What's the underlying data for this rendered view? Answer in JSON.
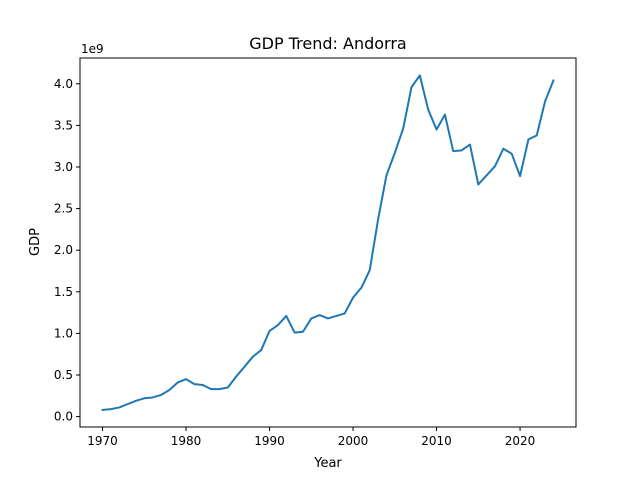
{
  "chart_data": {
    "type": "line",
    "title": "GDP Trend: Andorra",
    "xlabel": "Year",
    "ylabel": "GDP",
    "y_scale_label": "1e9",
    "xlim": [
      1967.3,
      2026.7
    ],
    "ylim": [
      -0.125,
      4.31
    ],
    "x_ticks": [
      1970,
      1980,
      1990,
      2000,
      2010,
      2020
    ],
    "y_ticks": [
      0.0,
      0.5,
      1.0,
      1.5,
      2.0,
      2.5,
      3.0,
      3.5,
      4.0
    ],
    "x_tick_labels": [
      "1970",
      "1980",
      "1990",
      "2000",
      "2010",
      "2020"
    ],
    "y_tick_labels": [
      "0.0",
      "0.5",
      "1.0",
      "1.5",
      "2.0",
      "2.5",
      "3.0",
      "3.5",
      "4.0"
    ],
    "grid": false,
    "line_color": "#1f77b4",
    "series": [
      {
        "x": [
          1970,
          1971,
          1972,
          1973,
          1974,
          1975,
          1976,
          1977,
          1978,
          1979,
          1980,
          1981,
          1982,
          1983,
          1984,
          1985,
          1986,
          1987,
          1988,
          1989,
          1990,
          1991,
          1992,
          1993,
          1994,
          1995,
          1996,
          1997,
          1998,
          1999,
          2000,
          2001,
          2002,
          2003,
          2004,
          2005,
          2006,
          2007,
          2008,
          2009,
          2010,
          2011,
          2012,
          2013,
          2014,
          2015,
          2016,
          2017,
          2018,
          2019,
          2020,
          2021,
          2022,
          2023,
          2024
        ],
        "y": [
          0.08,
          0.09,
          0.11,
          0.15,
          0.19,
          0.22,
          0.23,
          0.26,
          0.32,
          0.41,
          0.45,
          0.39,
          0.38,
          0.33,
          0.33,
          0.35,
          0.48,
          0.6,
          0.72,
          0.8,
          1.03,
          1.1,
          1.21,
          1.01,
          1.02,
          1.18,
          1.22,
          1.18,
          1.21,
          1.24,
          1.43,
          1.55,
          1.76,
          2.37,
          2.9,
          3.17,
          3.46,
          3.96,
          4.1,
          3.69,
          3.45,
          3.63,
          3.19,
          3.2,
          3.27,
          2.79,
          2.9,
          3.01,
          3.22,
          3.16,
          2.89,
          3.33,
          3.38,
          3.79,
          4.04
        ]
      }
    ]
  }
}
